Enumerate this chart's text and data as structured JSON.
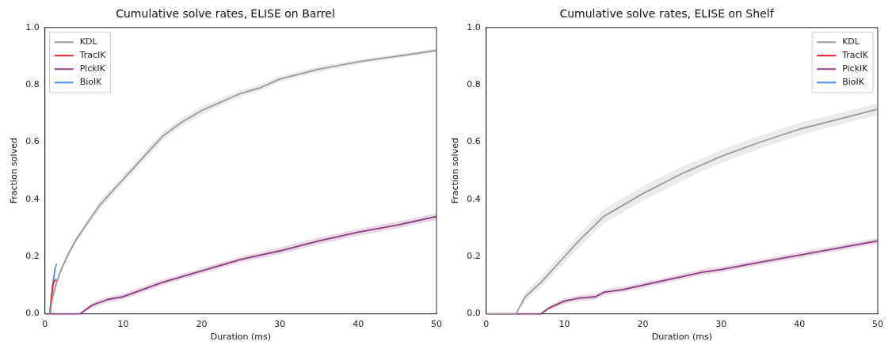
{
  "chart_data": [
    {
      "type": "line",
      "title": "Cumulative solve rates, ELISE on Barrel",
      "xlabel": "Duration (ms)",
      "ylabel": "Fraction solved",
      "xlim": [
        0,
        50
      ],
      "ylim": [
        0,
        1
      ],
      "xticks": [
        0,
        10,
        20,
        30,
        40,
        50
      ],
      "yticks": [
        {
          "value": 0,
          "label": "0.0"
        },
        {
          "value": 0.2,
          "label": "0.2"
        },
        {
          "value": 0.4,
          "label": "0.4"
        },
        {
          "value": 0.6,
          "label": "0.6"
        },
        {
          "value": 0.8,
          "label": "0.8"
        },
        {
          "value": 1,
          "label": "1.0"
        }
      ],
      "legend": "top left",
      "series": [
        {
          "name": "KDL",
          "color": "#999999",
          "x": [
            0.6,
            1,
            1.5,
            2,
            3,
            4,
            5,
            7,
            10,
            12,
            15,
            17.5,
            20,
            22.5,
            25,
            27.5,
            30,
            35,
            40,
            45,
            50
          ],
          "values": [
            0,
            0.06,
            0.11,
            0.15,
            0.21,
            0.26,
            0.3,
            0.38,
            0.47,
            0.53,
            0.62,
            0.67,
            0.71,
            0.74,
            0.77,
            0.79,
            0.82,
            0.855,
            0.88,
            0.9,
            0.92
          ],
          "lower": [
            0,
            0.05,
            0.1,
            0.14,
            0.2,
            0.25,
            0.29,
            0.365,
            0.455,
            0.515,
            0.605,
            0.655,
            0.695,
            0.728,
            0.758,
            0.779,
            0.81,
            0.845,
            0.872,
            0.893,
            0.914
          ],
          "upper": [
            0,
            0.07,
            0.12,
            0.16,
            0.22,
            0.27,
            0.31,
            0.395,
            0.485,
            0.545,
            0.635,
            0.685,
            0.725,
            0.752,
            0.782,
            0.801,
            0.83,
            0.865,
            0.888,
            0.907,
            0.926
          ]
        },
        {
          "name": "TracIK",
          "color": "#e8202a",
          "x": [
            0.6,
            0.8,
            1,
            1.2,
            1.5
          ],
          "values": [
            0,
            0.05,
            0.1,
            0.115,
            0.12
          ]
        },
        {
          "name": "PickIK",
          "color": "#8b3a7e",
          "x": [
            0,
            4.5,
            6,
            8,
            10,
            12,
            15,
            17.5,
            20,
            22.5,
            25,
            27.5,
            30,
            35,
            40,
            45,
            50
          ],
          "values": [
            0,
            0,
            0.03,
            0.05,
            0.06,
            0.08,
            0.11,
            0.13,
            0.15,
            0.17,
            0.19,
            0.205,
            0.22,
            0.255,
            0.285,
            0.31,
            0.34
          ],
          "lower": [
            0,
            0,
            0.02,
            0.04,
            0.05,
            0.07,
            0.1,
            0.12,
            0.14,
            0.16,
            0.18,
            0.194,
            0.208,
            0.243,
            0.273,
            0.298,
            0.328
          ],
          "upper": [
            0,
            0,
            0.04,
            0.06,
            0.07,
            0.09,
            0.12,
            0.14,
            0.16,
            0.18,
            0.2,
            0.216,
            0.232,
            0.267,
            0.297,
            0.322,
            0.352
          ]
        },
        {
          "name": "BioIK",
          "color": "#4a8cf0",
          "x": [
            0.7,
            1,
            1.3,
            1.5
          ],
          "values": [
            0,
            0.1,
            0.16,
            0.175
          ]
        }
      ]
    },
    {
      "type": "line",
      "title": "Cumulative solve rates, ELISE on Shelf",
      "xlabel": "Duration (ms)",
      "ylabel": "Fraction solved",
      "xlim": [
        0,
        50
      ],
      "ylim": [
        0,
        1
      ],
      "xticks": [
        0,
        10,
        20,
        30,
        40,
        50
      ],
      "yticks": [
        {
          "value": 0,
          "label": "0.0"
        },
        {
          "value": 0.2,
          "label": "0.2"
        },
        {
          "value": 0.4,
          "label": "0.4"
        },
        {
          "value": 0.6,
          "label": "0.6"
        },
        {
          "value": 0.8,
          "label": "0.8"
        },
        {
          "value": 1,
          "label": "1.0"
        }
      ],
      "legend": "top right",
      "series": [
        {
          "name": "KDL",
          "color": "#999999",
          "x": [
            0,
            3.8,
            5,
            7,
            10,
            12,
            15,
            17.5,
            20,
            22.5,
            25,
            27.5,
            30,
            35,
            40,
            45,
            50
          ],
          "values": [
            0,
            0,
            0.06,
            0.11,
            0.2,
            0.26,
            0.34,
            0.38,
            0.42,
            0.455,
            0.49,
            0.52,
            0.55,
            0.6,
            0.645,
            0.68,
            0.715
          ],
          "lower": [
            0,
            0,
            0.045,
            0.09,
            0.18,
            0.235,
            0.315,
            0.355,
            0.395,
            0.43,
            0.465,
            0.497,
            0.527,
            0.578,
            0.623,
            0.66,
            0.695
          ],
          "upper": [
            0,
            0,
            0.075,
            0.13,
            0.22,
            0.285,
            0.365,
            0.405,
            0.445,
            0.48,
            0.515,
            0.543,
            0.573,
            0.622,
            0.667,
            0.7,
            0.735
          ]
        },
        {
          "name": "TracIK",
          "color": "#e8202a"
        },
        {
          "name": "PickIK",
          "color": "#8b3a7e",
          "x": [
            0,
            7,
            8,
            10,
            12,
            14,
            15,
            17.5,
            20,
            22.5,
            25,
            27.5,
            30,
            35,
            40,
            45,
            50
          ],
          "values": [
            0,
            0,
            0.02,
            0.045,
            0.055,
            0.06,
            0.075,
            0.085,
            0.1,
            0.115,
            0.13,
            0.145,
            0.155,
            0.18,
            0.205,
            0.23,
            0.255
          ],
          "lower": [
            0,
            0,
            0.012,
            0.035,
            0.045,
            0.05,
            0.065,
            0.075,
            0.09,
            0.105,
            0.12,
            0.135,
            0.145,
            0.17,
            0.195,
            0.22,
            0.245
          ],
          "upper": [
            0,
            0,
            0.028,
            0.055,
            0.065,
            0.07,
            0.085,
            0.095,
            0.11,
            0.125,
            0.14,
            0.155,
            0.165,
            0.19,
            0.215,
            0.24,
            0.265
          ]
        },
        {
          "name": "BioIK",
          "color": "#4a8cf0"
        }
      ]
    }
  ]
}
